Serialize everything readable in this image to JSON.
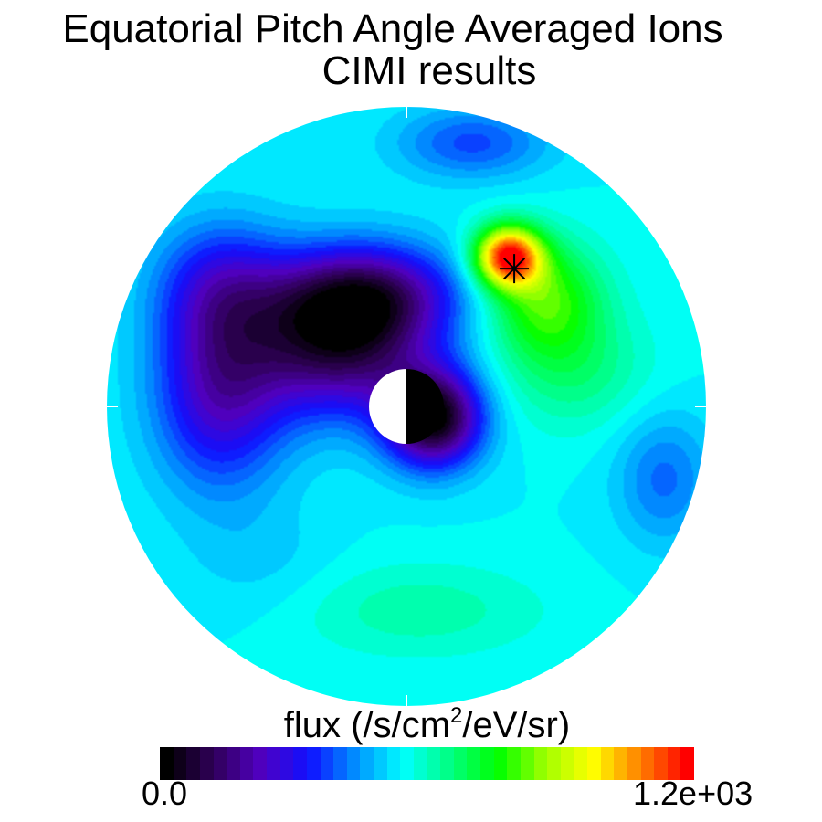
{
  "chart_data": {
    "type": "heatmap",
    "projection": "polar",
    "title": "Equatorial Pitch Angle Averaged Ions",
    "subtitle": "CIMI results",
    "colorbar": {
      "label_prefix": "flux (/s/cm",
      "label_sup": "2",
      "label_suffix": "/eV/sr)",
      "min_label": "0.0",
      "max_label": "1.2e+03",
      "range": [
        0,
        1200
      ],
      "levels": 40,
      "colormap": [
        "#000000",
        "#30005a",
        "#5000c0",
        "#1010ff",
        "#0090ff",
        "#00ffff",
        "#00ff80",
        "#00ff00",
        "#a0ff00",
        "#ffff00",
        "#ff8000",
        "#ff0000"
      ]
    },
    "markers": [
      {
        "symbol": "asterisk",
        "x": 3.6,
        "y": 4.6
      }
    ],
    "field": {
      "background": 540,
      "blobs": [
        {
          "x": 0.9,
          "y": -0.4,
          "sx": 1.6,
          "sy": 1.6,
          "a": -520
        },
        {
          "x": -2.2,
          "y": 2.2,
          "sx": 3.0,
          "sy": 2.4,
          "a": -450
        },
        {
          "x": -1.2,
          "y": 3.8,
          "sx": 3.0,
          "sy": 1.6,
          "a": -280
        },
        {
          "x": -6.2,
          "y": 0.5,
          "sx": 2.2,
          "sy": 3.2,
          "a": -300
        },
        {
          "x": -6.2,
          "y": 4.0,
          "sx": 2.2,
          "sy": 2.2,
          "a": -200
        },
        {
          "x": 3.4,
          "y": 5.0,
          "sx": 1.1,
          "sy": 1.0,
          "a": 620
        },
        {
          "x": 4.6,
          "y": 3.6,
          "sx": 1.9,
          "sy": 1.9,
          "a": 260
        },
        {
          "x": 5.6,
          "y": 1.2,
          "sx": 2.5,
          "sy": 2.0,
          "a": 110
        },
        {
          "x": 0.4,
          "y": -6.8,
          "sx": 4.2,
          "sy": 1.6,
          "a": 80
        },
        {
          "x": 2.2,
          "y": 8.8,
          "sx": 2.5,
          "sy": 1.2,
          "a": -160
        },
        {
          "x": 8.6,
          "y": -2.4,
          "sx": 1.6,
          "sy": 2.2,
          "a": -130
        },
        {
          "x": -4.8,
          "y": -5.2,
          "sx": 2.5,
          "sy": 1.9,
          "a": -40
        }
      ]
    }
  }
}
